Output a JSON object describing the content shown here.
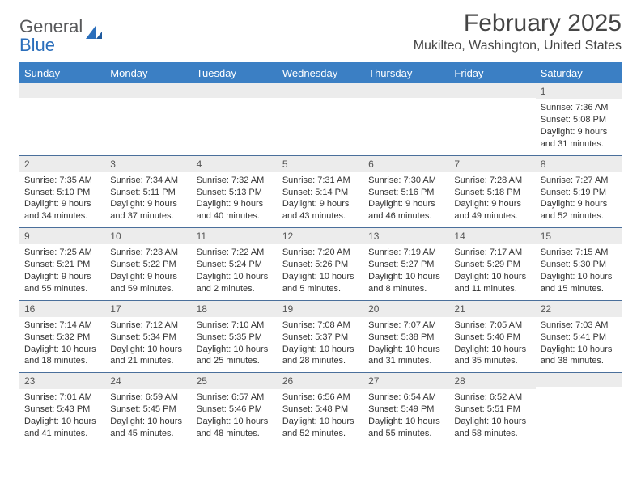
{
  "branding": {
    "logo_line1": "General",
    "logo_line2": "Blue",
    "logo_gray": "#58595b",
    "logo_blue": "#2a6ebb",
    "sail_color": "#2a6ebb"
  },
  "header": {
    "month_title": "February 2025",
    "location": "Mukilteo, Washington, United States"
  },
  "style": {
    "header_bg": "#3b7fc4",
    "header_text": "#ffffff",
    "daynum_bg": "#ececec",
    "daynum_text": "#555555",
    "divider_color": "#4a6f9b",
    "body_text": "#333333",
    "page_bg": "#ffffff",
    "title_color": "#454545",
    "day_header_fontsize": 13,
    "daynum_fontsize": 12,
    "body_fontsize": 11,
    "month_title_fontsize": 30,
    "location_fontsize": 16
  },
  "day_names": [
    "Sunday",
    "Monday",
    "Tuesday",
    "Wednesday",
    "Thursday",
    "Friday",
    "Saturday"
  ],
  "weeks": [
    [
      {
        "num": "",
        "lines": []
      },
      {
        "num": "",
        "lines": []
      },
      {
        "num": "",
        "lines": []
      },
      {
        "num": "",
        "lines": []
      },
      {
        "num": "",
        "lines": []
      },
      {
        "num": "",
        "lines": []
      },
      {
        "num": "1",
        "lines": [
          "Sunrise: 7:36 AM",
          "Sunset: 5:08 PM",
          "Daylight: 9 hours and 31 minutes."
        ]
      }
    ],
    [
      {
        "num": "2",
        "lines": [
          "Sunrise: 7:35 AM",
          "Sunset: 5:10 PM",
          "Daylight: 9 hours and 34 minutes."
        ]
      },
      {
        "num": "3",
        "lines": [
          "Sunrise: 7:34 AM",
          "Sunset: 5:11 PM",
          "Daylight: 9 hours and 37 minutes."
        ]
      },
      {
        "num": "4",
        "lines": [
          "Sunrise: 7:32 AM",
          "Sunset: 5:13 PM",
          "Daylight: 9 hours and 40 minutes."
        ]
      },
      {
        "num": "5",
        "lines": [
          "Sunrise: 7:31 AM",
          "Sunset: 5:14 PM",
          "Daylight: 9 hours and 43 minutes."
        ]
      },
      {
        "num": "6",
        "lines": [
          "Sunrise: 7:30 AM",
          "Sunset: 5:16 PM",
          "Daylight: 9 hours and 46 minutes."
        ]
      },
      {
        "num": "7",
        "lines": [
          "Sunrise: 7:28 AM",
          "Sunset: 5:18 PM",
          "Daylight: 9 hours and 49 minutes."
        ]
      },
      {
        "num": "8",
        "lines": [
          "Sunrise: 7:27 AM",
          "Sunset: 5:19 PM",
          "Daylight: 9 hours and 52 minutes."
        ]
      }
    ],
    [
      {
        "num": "9",
        "lines": [
          "Sunrise: 7:25 AM",
          "Sunset: 5:21 PM",
          "Daylight: 9 hours and 55 minutes."
        ]
      },
      {
        "num": "10",
        "lines": [
          "Sunrise: 7:23 AM",
          "Sunset: 5:22 PM",
          "Daylight: 9 hours and 59 minutes."
        ]
      },
      {
        "num": "11",
        "lines": [
          "Sunrise: 7:22 AM",
          "Sunset: 5:24 PM",
          "Daylight: 10 hours and 2 minutes."
        ]
      },
      {
        "num": "12",
        "lines": [
          "Sunrise: 7:20 AM",
          "Sunset: 5:26 PM",
          "Daylight: 10 hours and 5 minutes."
        ]
      },
      {
        "num": "13",
        "lines": [
          "Sunrise: 7:19 AM",
          "Sunset: 5:27 PM",
          "Daylight: 10 hours and 8 minutes."
        ]
      },
      {
        "num": "14",
        "lines": [
          "Sunrise: 7:17 AM",
          "Sunset: 5:29 PM",
          "Daylight: 10 hours and 11 minutes."
        ]
      },
      {
        "num": "15",
        "lines": [
          "Sunrise: 7:15 AM",
          "Sunset: 5:30 PM",
          "Daylight: 10 hours and 15 minutes."
        ]
      }
    ],
    [
      {
        "num": "16",
        "lines": [
          "Sunrise: 7:14 AM",
          "Sunset: 5:32 PM",
          "Daylight: 10 hours and 18 minutes."
        ]
      },
      {
        "num": "17",
        "lines": [
          "Sunrise: 7:12 AM",
          "Sunset: 5:34 PM",
          "Daylight: 10 hours and 21 minutes."
        ]
      },
      {
        "num": "18",
        "lines": [
          "Sunrise: 7:10 AM",
          "Sunset: 5:35 PM",
          "Daylight: 10 hours and 25 minutes."
        ]
      },
      {
        "num": "19",
        "lines": [
          "Sunrise: 7:08 AM",
          "Sunset: 5:37 PM",
          "Daylight: 10 hours and 28 minutes."
        ]
      },
      {
        "num": "20",
        "lines": [
          "Sunrise: 7:07 AM",
          "Sunset: 5:38 PM",
          "Daylight: 10 hours and 31 minutes."
        ]
      },
      {
        "num": "21",
        "lines": [
          "Sunrise: 7:05 AM",
          "Sunset: 5:40 PM",
          "Daylight: 10 hours and 35 minutes."
        ]
      },
      {
        "num": "22",
        "lines": [
          "Sunrise: 7:03 AM",
          "Sunset: 5:41 PM",
          "Daylight: 10 hours and 38 minutes."
        ]
      }
    ],
    [
      {
        "num": "23",
        "lines": [
          "Sunrise: 7:01 AM",
          "Sunset: 5:43 PM",
          "Daylight: 10 hours and 41 minutes."
        ]
      },
      {
        "num": "24",
        "lines": [
          "Sunrise: 6:59 AM",
          "Sunset: 5:45 PM",
          "Daylight: 10 hours and 45 minutes."
        ]
      },
      {
        "num": "25",
        "lines": [
          "Sunrise: 6:57 AM",
          "Sunset: 5:46 PM",
          "Daylight: 10 hours and 48 minutes."
        ]
      },
      {
        "num": "26",
        "lines": [
          "Sunrise: 6:56 AM",
          "Sunset: 5:48 PM",
          "Daylight: 10 hours and 52 minutes."
        ]
      },
      {
        "num": "27",
        "lines": [
          "Sunrise: 6:54 AM",
          "Sunset: 5:49 PM",
          "Daylight: 10 hours and 55 minutes."
        ]
      },
      {
        "num": "28",
        "lines": [
          "Sunrise: 6:52 AM",
          "Sunset: 5:51 PM",
          "Daylight: 10 hours and 58 minutes."
        ]
      },
      {
        "num": "",
        "lines": []
      }
    ]
  ]
}
